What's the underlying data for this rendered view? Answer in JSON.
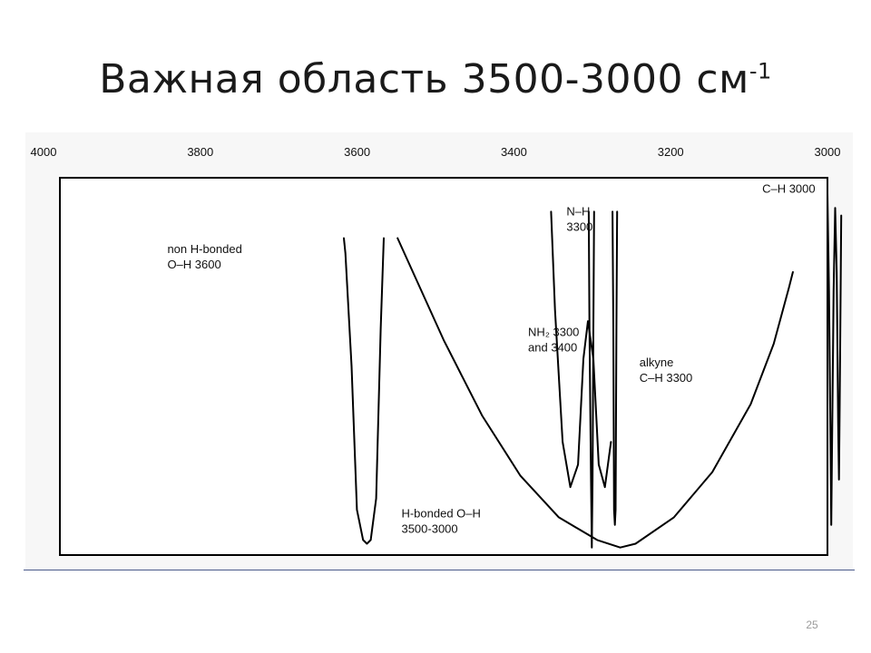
{
  "slide": {
    "title": "Важная область 3500-3000 см",
    "title_superscript": "-1",
    "page_number": "25"
  },
  "chart_data": {
    "type": "line",
    "title": "",
    "xlabel": "",
    "ylabel": "",
    "x_reversed": true,
    "xlim": [
      4000,
      3000
    ],
    "ylim": [
      0,
      100
    ],
    "x_ticks": [
      {
        "value": 4000,
        "label": "4000"
      },
      {
        "value": 3800,
        "label": "3800"
      },
      {
        "value": 3600,
        "label": "3600"
      },
      {
        "value": 3400,
        "label": "3400"
      },
      {
        "value": 3200,
        "label": "3200"
      },
      {
        "value": 3000,
        "label": "3000"
      }
    ],
    "series": [
      {
        "id": "non-hbonded-oh",
        "points": [
          [
            3630,
            84
          ],
          [
            3628,
            80
          ],
          [
            3620,
            50
          ],
          [
            3613,
            12
          ],
          [
            3605,
            4
          ],
          [
            3600,
            3
          ],
          [
            3595,
            4
          ],
          [
            3588,
            15
          ],
          [
            3582,
            60
          ],
          [
            3578,
            84
          ]
        ]
      },
      {
        "id": "hbonded-oh",
        "points": [
          [
            3560,
            84
          ],
          [
            3500,
            57
          ],
          [
            3450,
            37
          ],
          [
            3400,
            21
          ],
          [
            3350,
            10
          ],
          [
            3300,
            4
          ],
          [
            3270,
            2
          ],
          [
            3250,
            3
          ],
          [
            3200,
            10
          ],
          [
            3150,
            22
          ],
          [
            3100,
            40
          ],
          [
            3070,
            56
          ],
          [
            3050,
            71
          ],
          [
            3045,
            75
          ]
        ]
      },
      {
        "id": "nh-amine",
        "points": [
          [
            3360,
            91
          ],
          [
            3355,
            65
          ],
          [
            3345,
            30
          ],
          [
            3335,
            18
          ],
          [
            3325,
            24
          ],
          [
            3318,
            52
          ],
          [
            3312,
            62
          ],
          [
            3305,
            52
          ],
          [
            3298,
            24
          ],
          [
            3290,
            18
          ],
          [
            3282,
            30
          ]
        ]
      },
      {
        "id": "nh-single",
        "points": [
          [
            3311,
            91
          ],
          [
            3310,
            60
          ],
          [
            3308,
            20
          ],
          [
            3307,
            2
          ],
          [
            3306,
            20
          ],
          [
            3305,
            60
          ],
          [
            3304,
            91
          ]
        ]
      },
      {
        "id": "alkyne-ch",
        "points": [
          [
            3280,
            91
          ],
          [
            3279,
            60
          ],
          [
            3278,
            12
          ],
          [
            3277,
            8
          ],
          [
            3276,
            12
          ],
          [
            3275,
            60
          ],
          [
            3274,
            91
          ]
        ]
      },
      {
        "id": "ch-3000",
        "points": [
          [
            3000,
            96
          ],
          [
            2998,
            70
          ],
          [
            2996,
            30
          ],
          [
            2995,
            8
          ],
          [
            2994,
            30
          ],
          [
            2992,
            70
          ],
          [
            2990,
            92
          ],
          [
            2988,
            75
          ],
          [
            2986,
            35
          ],
          [
            2985,
            20
          ],
          [
            2984,
            40
          ],
          [
            2982,
            90
          ]
        ]
      }
    ],
    "annotations": [
      {
        "x": 3860,
        "y": 80,
        "lines": [
          "non H-bonded",
          "O–H 3600"
        ]
      },
      {
        "x": 3390,
        "y": 58,
        "lines": [
          "NH₂ 3300",
          "and 3400"
        ]
      },
      {
        "x": 3340,
        "y": 90,
        "lines": [
          "N–H",
          "3300"
        ]
      },
      {
        "x": 3245,
        "y": 50,
        "lines": [
          "alkyne",
          "C–H 3300"
        ]
      },
      {
        "x": 3085,
        "y": 96,
        "lines": [
          "C–H 3000"
        ]
      },
      {
        "x": 3555,
        "y": 10,
        "lines": [
          "H-bonded O–H",
          "3500-3000"
        ]
      }
    ]
  }
}
